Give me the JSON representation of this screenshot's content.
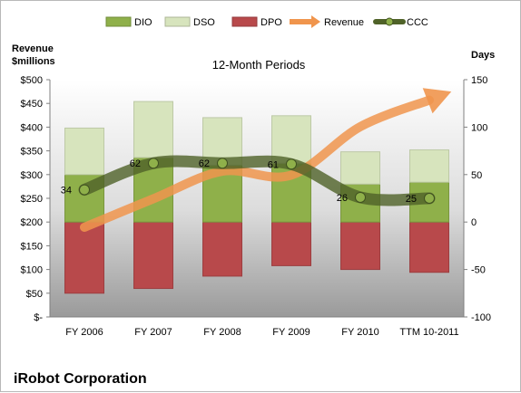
{
  "chart_data": {
    "type": "bar",
    "title": "12-Month Periods",
    "left_axis_title": "Revenue $millions",
    "right_axis_title": "Days",
    "company": "iRobot Corporation",
    "categories": [
      "FY 2006",
      "FY 2007",
      "FY 2008",
      "FY 2009",
      "FY 2010",
      "TTM 10-2011"
    ],
    "left_axis": {
      "range": [
        0,
        500
      ],
      "ticks": [
        500,
        450,
        400,
        350,
        300,
        250,
        200,
        150,
        100,
        50,
        0
      ],
      "tick_labels": [
        "$500",
        "$450",
        "$400",
        "$350",
        "$300",
        "$250",
        "$200",
        "$150",
        "$100",
        "$50",
        "$-"
      ]
    },
    "right_axis": {
      "range": [
        -100,
        150
      ],
      "ticks": [
        150,
        100,
        50,
        0,
        -50,
        -100
      ],
      "tick_labels": [
        "150",
        "100",
        "50",
        "0",
        "-50",
        "-100"
      ]
    },
    "legend": {
      "placement": "top",
      "entries": [
        {
          "name": "DIO",
          "kind": "bar",
          "color": "#8fb04a"
        },
        {
          "name": "DSO",
          "kind": "bar",
          "color": "#d7e4bd"
        },
        {
          "name": "DPO",
          "kind": "bar",
          "color": "#b8494b"
        },
        {
          "name": "Revenue",
          "kind": "arrow",
          "color": "#f0954d"
        },
        {
          "name": "CCC",
          "kind": "line",
          "color": "#4f6228"
        }
      ]
    },
    "series": [
      {
        "name": "DIO",
        "axis": "right",
        "values": [
          50,
          68,
          60,
          62,
          40,
          42
        ],
        "color": "#8fb04a"
      },
      {
        "name": "DSO",
        "axis": "right",
        "values": [
          49,
          59,
          50,
          50,
          34,
          34
        ],
        "color": "#d7e4bd"
      },
      {
        "name": "DPO",
        "axis": "right",
        "values": [
          -75,
          -70,
          -57,
          -46,
          -50,
          -53
        ],
        "color": "#b8494b"
      },
      {
        "name": "Revenue",
        "axis": "left",
        "values": [
          189,
          249,
          307,
          299,
          401,
          457
        ],
        "color": "#f0954d"
      },
      {
        "name": "CCC",
        "axis": "right",
        "values": [
          34,
          62,
          62,
          61,
          26,
          25
        ],
        "color": "#4f6228"
      }
    ],
    "data_labels": [
      "34",
      "62",
      "62",
      "61",
      "26",
      "25"
    ],
    "grid": false
  }
}
